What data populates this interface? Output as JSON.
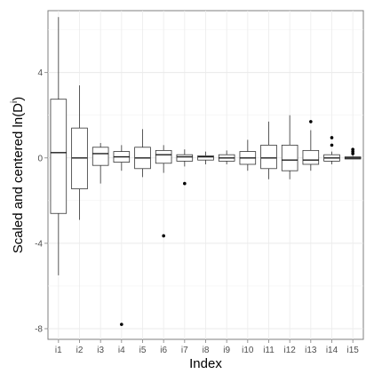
{
  "chart_data": {
    "type": "box",
    "title": "",
    "xlabel": "Index",
    "ylabel": {
      "text": "Scaled and centered ln(D",
      "superscript": "i",
      "suffix": ")"
    },
    "categories": [
      "i1",
      "i2",
      "i3",
      "i4",
      "i5",
      "i6",
      "i7",
      "i8",
      "i9",
      "i10",
      "i11",
      "i12",
      "i13",
      "i14",
      "i15"
    ],
    "ylim": [
      -8.5,
      6.9
    ],
    "yticks": [
      -8,
      -4,
      0,
      4
    ],
    "grid": true,
    "legend": "none",
    "boxes": [
      {
        "category": "i1",
        "whisker_low": -5.5,
        "q1": -2.6,
        "median": 0.25,
        "q3": 2.75,
        "whisker_high": 6.6,
        "outliers": []
      },
      {
        "category": "i2",
        "whisker_low": -2.9,
        "q1": -1.45,
        "median": 0.0,
        "q3": 1.4,
        "whisker_high": 3.4,
        "outliers": []
      },
      {
        "category": "i3",
        "whisker_low": -1.2,
        "q1": -0.35,
        "median": 0.2,
        "q3": 0.5,
        "whisker_high": 0.7,
        "outliers": []
      },
      {
        "category": "i4",
        "whisker_low": -0.6,
        "q1": -0.2,
        "median": 0.05,
        "q3": 0.3,
        "whisker_high": 0.6,
        "outliers": [
          -7.8
        ]
      },
      {
        "category": "i5",
        "whisker_low": -0.9,
        "q1": -0.5,
        "median": 0.0,
        "q3": 0.5,
        "whisker_high": 1.35,
        "outliers": []
      },
      {
        "category": "i6",
        "whisker_low": -0.7,
        "q1": -0.25,
        "median": 0.15,
        "q3": 0.35,
        "whisker_high": 0.6,
        "outliers": [
          -3.65
        ]
      },
      {
        "category": "i7",
        "whisker_low": -0.4,
        "q1": -0.15,
        "median": 0.05,
        "q3": 0.15,
        "whisker_high": 0.4,
        "outliers": [
          -1.2
        ]
      },
      {
        "category": "i8",
        "whisker_low": -0.3,
        "q1": -0.1,
        "median": 0.05,
        "q3": 0.1,
        "whisker_high": 0.3,
        "outliers": []
      },
      {
        "category": "i9",
        "whisker_low": -0.3,
        "q1": -0.15,
        "median": 0.0,
        "q3": 0.15,
        "whisker_high": 0.35,
        "outliers": []
      },
      {
        "category": "i10",
        "whisker_low": -0.6,
        "q1": -0.3,
        "median": 0.0,
        "q3": 0.3,
        "whisker_high": 0.85,
        "outliers": []
      },
      {
        "category": "i11",
        "whisker_low": -1.0,
        "q1": -0.5,
        "median": 0.0,
        "q3": 0.6,
        "whisker_high": 1.7,
        "outliers": []
      },
      {
        "category": "i12",
        "whisker_low": -1.0,
        "q1": -0.6,
        "median": -0.1,
        "q3": 0.6,
        "whisker_high": 2.0,
        "outliers": []
      },
      {
        "category": "i13",
        "whisker_low": -0.6,
        "q1": -0.3,
        "median": -0.1,
        "q3": 0.35,
        "whisker_high": 1.3,
        "outliers": [
          1.7
        ]
      },
      {
        "category": "i14",
        "whisker_low": -0.3,
        "q1": -0.15,
        "median": 0.0,
        "q3": 0.15,
        "whisker_high": 0.3,
        "outliers": [
          0.6,
          0.95
        ]
      },
      {
        "category": "i15",
        "whisker_low": -0.05,
        "q1": -0.05,
        "median": 0.0,
        "q3": 0.05,
        "whisker_high": 0.1,
        "outliers": [
          0.2,
          0.3,
          0.4
        ]
      }
    ]
  }
}
